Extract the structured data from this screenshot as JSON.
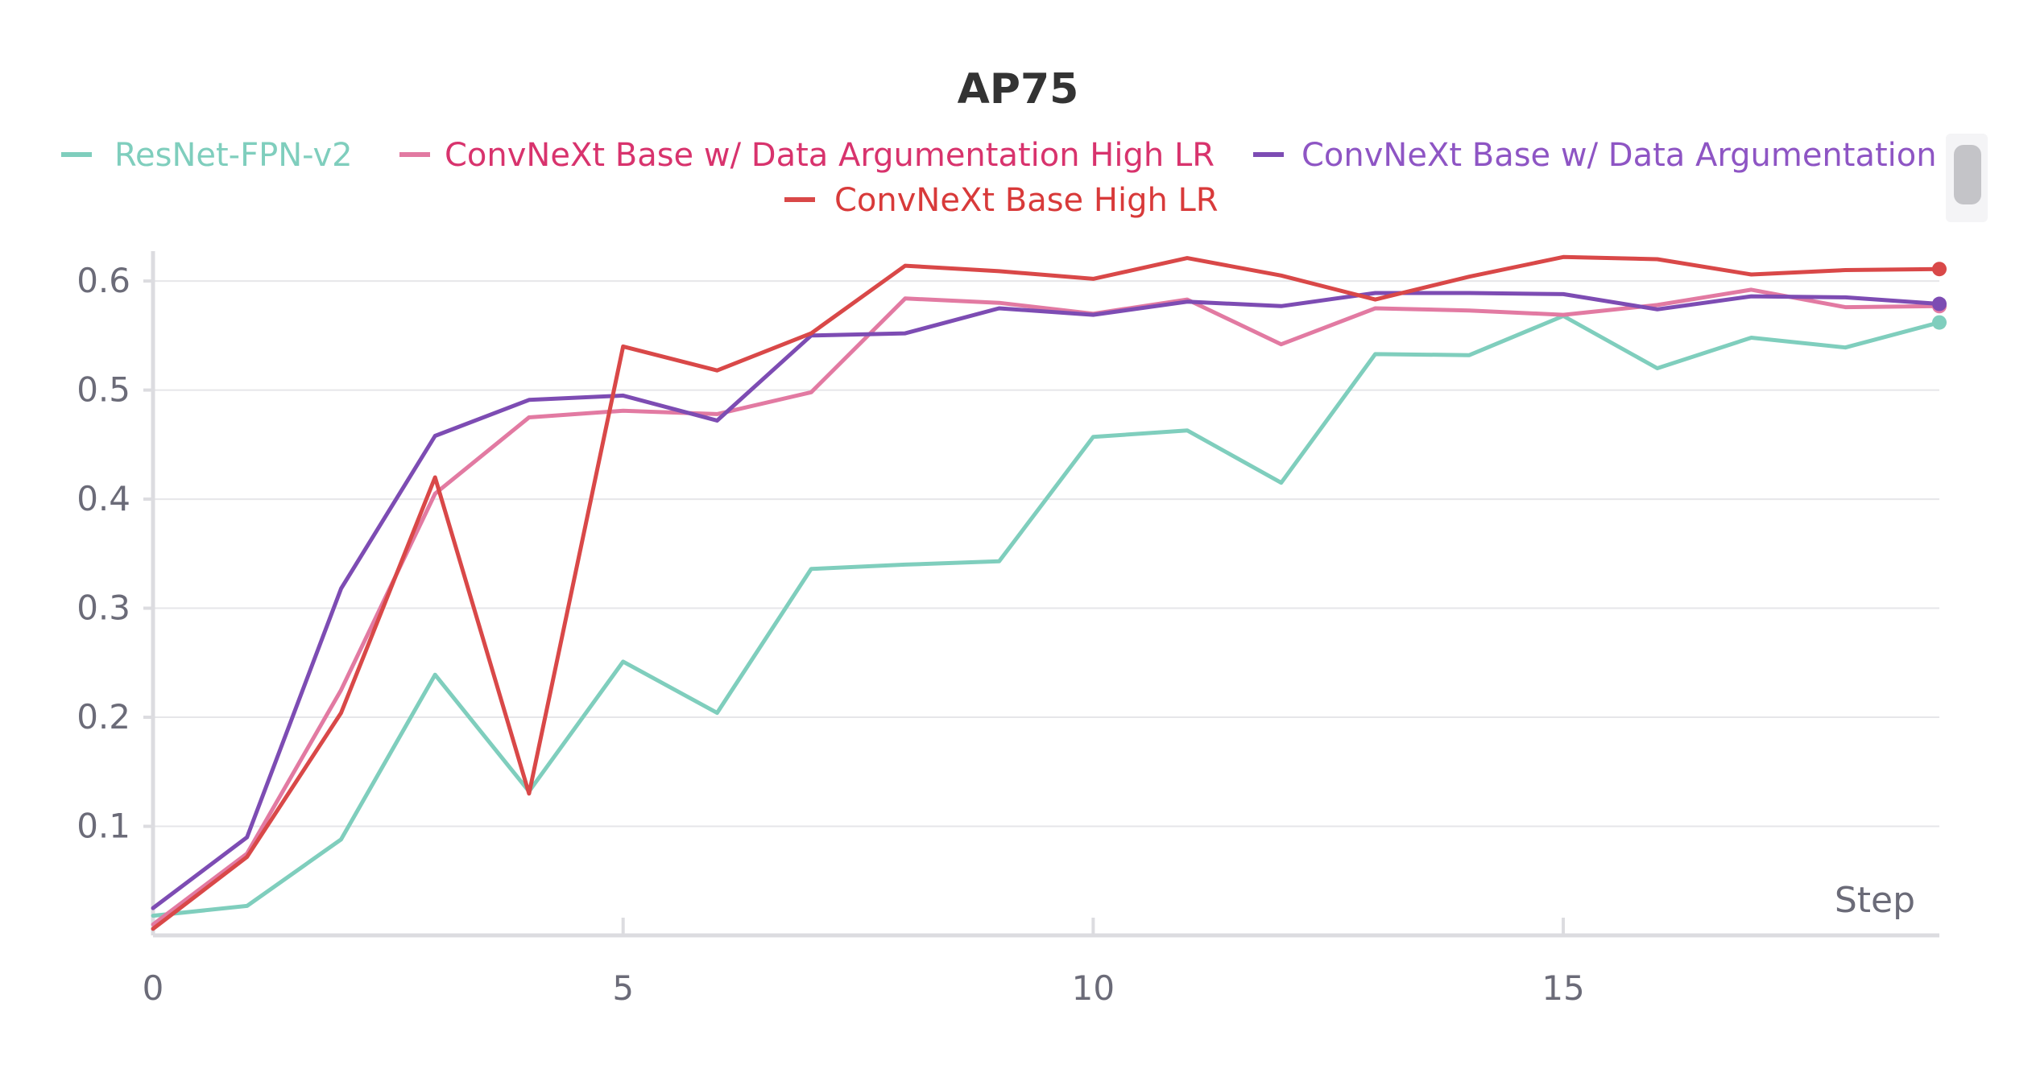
{
  "chart_data": {
    "type": "line",
    "title": "AP75",
    "xlabel": "Step",
    "ylabel": "",
    "xlim": [
      0,
      19
    ],
    "ylim": [
      0,
      0.62
    ],
    "x_ticks": [
      "0",
      "5",
      "10",
      "15"
    ],
    "y_ticks": [
      "0.1",
      "0.2",
      "0.3",
      "0.4",
      "0.5",
      "0.6"
    ],
    "grid": true,
    "legend_position": "top",
    "x": [
      0,
      1,
      2,
      3,
      4,
      5,
      6,
      7,
      8,
      9,
      10,
      11,
      12,
      13,
      14,
      15,
      16,
      17,
      18,
      19
    ],
    "series": [
      {
        "name": "ResNet-FPN-v2",
        "color": "#7fcebd",
        "values": [
          0.018,
          0.027,
          0.088,
          0.239,
          0.132,
          0.251,
          0.204,
          0.336,
          0.34,
          0.343,
          0.457,
          0.463,
          0.415,
          0.533,
          0.532,
          0.568,
          0.52,
          0.548,
          0.539,
          0.562
        ]
      },
      {
        "name": "ConvNeXt Base w/ Data Argumentation High LR",
        "color": "#e27aa2",
        "text_color": "#d8336d",
        "values": [
          0.01,
          0.075,
          0.225,
          0.405,
          0.475,
          0.481,
          0.478,
          0.498,
          0.584,
          0.58,
          0.57,
          0.583,
          0.542,
          0.575,
          0.573,
          0.569,
          0.578,
          0.592,
          0.576,
          0.577
        ]
      },
      {
        "name": "ConvNeXt Base w/ Data Argumentation",
        "color": "#7d4cb3",
        "text_color": "#8e55c4",
        "values": [
          0.025,
          0.09,
          0.318,
          0.458,
          0.491,
          0.495,
          0.472,
          0.55,
          0.552,
          0.575,
          0.569,
          0.581,
          0.577,
          0.589,
          0.589,
          0.588,
          0.574,
          0.586,
          0.585,
          0.579
        ]
      },
      {
        "name": "ConvNeXt Base High LR",
        "color": "#d94848",
        "text_color": "#d83a3a",
        "values": [
          0.006,
          0.072,
          0.204,
          0.42,
          0.13,
          0.54,
          0.518,
          0.552,
          0.614,
          0.609,
          0.602,
          0.621,
          0.605,
          0.583,
          0.604,
          0.622,
          0.62,
          0.606,
          0.61,
          0.611
        ]
      }
    ]
  }
}
